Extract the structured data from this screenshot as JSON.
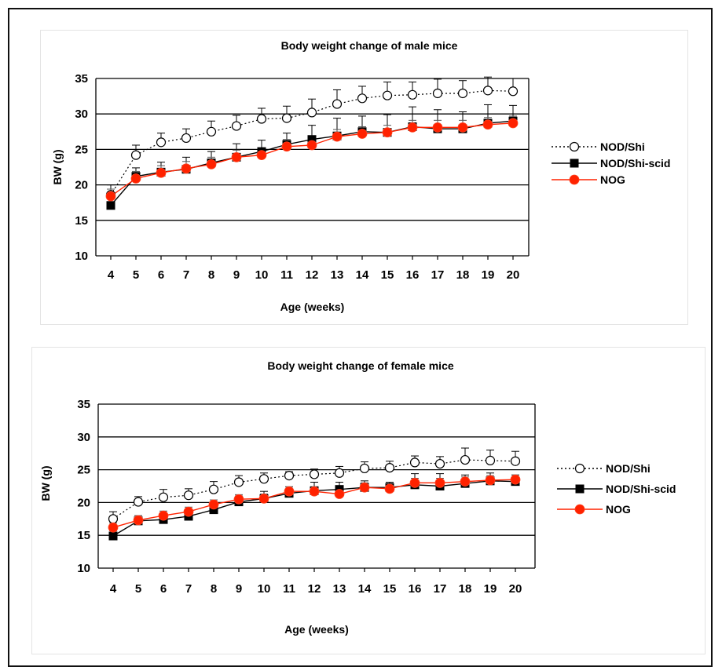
{
  "chart_data": [
    {
      "type": "line",
      "title": "Body weight change of male mice",
      "xlabel": "Age (weeks)",
      "ylabel": "BW (g)",
      "ylim": [
        10,
        35
      ],
      "yticks": [
        10,
        15,
        20,
        25,
        30,
        35
      ],
      "grid": "horizontal",
      "legend_position": "right",
      "x": [
        4,
        5,
        6,
        7,
        8,
        9,
        10,
        11,
        12,
        13,
        14,
        15,
        16,
        17,
        18,
        19,
        20
      ],
      "series": [
        {
          "name": "NOD/Shi",
          "style": "dotted",
          "marker": "open-circle",
          "color": "#000000",
          "values": [
            18.6,
            24.2,
            26.0,
            26.6,
            27.5,
            28.3,
            29.3,
            29.4,
            30.2,
            31.4,
            32.2,
            32.6,
            32.7,
            32.9,
            32.9,
            33.3,
            33.2
          ],
          "errors": [
            1.4,
            1.4,
            1.3,
            1.3,
            1.5,
            1.5,
            1.5,
            1.7,
            1.9,
            2.0,
            1.7,
            1.9,
            1.8,
            2.0,
            1.8,
            1.9,
            1.8
          ]
        },
        {
          "name": "NOD/Shi-scid",
          "style": "solid",
          "marker": "filled-square",
          "color": "#000000",
          "values": [
            17.1,
            21.2,
            21.8,
            22.2,
            23.1,
            23.9,
            24.7,
            25.7,
            26.4,
            26.9,
            27.5,
            27.4,
            28.2,
            27.9,
            27.9,
            28.7,
            29.0
          ],
          "errors": [
            1.2,
            1.2,
            1.4,
            1.7,
            1.6,
            1.9,
            1.6,
            1.6,
            2.0,
            2.5,
            2.2,
            2.5,
            2.8,
            2.7,
            2.4,
            2.6,
            2.2
          ]
        },
        {
          "name": "NOG",
          "style": "solid",
          "marker": "filled-circle",
          "color": "#ff2200",
          "values": [
            18.4,
            20.9,
            21.7,
            22.3,
            22.9,
            23.9,
            24.2,
            25.4,
            25.6,
            26.8,
            27.2,
            27.4,
            28.1,
            28.1,
            28.1,
            28.5,
            28.7
          ],
          "errors": [
            1.0,
            1.0,
            1.0,
            1.0,
            1.0,
            1.0,
            1.0,
            1.0,
            1.0,
            1.0,
            1.0,
            1.0,
            1.0,
            1.0,
            1.0,
            1.0,
            1.0
          ]
        }
      ]
    },
    {
      "type": "line",
      "title": "Body weight change of female mice",
      "xlabel": "Age (weeks)",
      "ylabel": "BW (g)",
      "ylim": [
        10,
        35
      ],
      "yticks": [
        10,
        15,
        20,
        25,
        30,
        35
      ],
      "grid": "horizontal",
      "legend_position": "right",
      "x": [
        4,
        5,
        6,
        7,
        8,
        9,
        10,
        11,
        12,
        13,
        14,
        15,
        16,
        17,
        18,
        19,
        20
      ],
      "series": [
        {
          "name": "NOD/Shi",
          "style": "dotted",
          "marker": "open-circle",
          "color": "#000000",
          "values": [
            17.5,
            20.1,
            20.8,
            21.1,
            22.0,
            23.1,
            23.6,
            24.1,
            24.3,
            24.5,
            25.2,
            25.3,
            26.1,
            25.9,
            26.5,
            26.4,
            26.3
          ],
          "errors": [
            1.1,
            0.8,
            1.2,
            1.0,
            1.2,
            1.0,
            0.9,
            0.6,
            0.8,
            1.0,
            1.0,
            1.0,
            1.0,
            1.1,
            1.8,
            1.6,
            1.5
          ]
        },
        {
          "name": "NOD/Shi-scid",
          "style": "solid",
          "marker": "filled-square",
          "color": "#000000",
          "values": [
            14.9,
            17.2,
            17.4,
            17.9,
            18.9,
            20.1,
            20.6,
            21.4,
            21.8,
            22.0,
            22.3,
            22.3,
            22.7,
            22.5,
            22.9,
            23.3,
            23.2
          ],
          "errors": [
            0.8,
            0.8,
            0.8,
            0.8,
            0.9,
            0.9,
            1.1,
            1.0,
            1.3,
            1.1,
            1.0,
            0.8,
            1.7,
            1.9,
            1.3,
            1.2,
            1.0
          ]
        },
        {
          "name": "NOG",
          "style": "solid",
          "marker": "filled-circle",
          "color": "#ff2200",
          "values": [
            16.2,
            17.3,
            18.0,
            18.6,
            19.7,
            20.5,
            20.6,
            21.7,
            21.7,
            21.3,
            22.3,
            22.1,
            23.0,
            23.0,
            23.2,
            23.4,
            23.5
          ],
          "errors": [
            0.7,
            0.7,
            0.7,
            0.7,
            0.7,
            0.7,
            0.7,
            0.7,
            0.7,
            0.7,
            0.7,
            0.7,
            0.7,
            0.7,
            0.7,
            0.7,
            0.7
          ]
        }
      ]
    }
  ]
}
